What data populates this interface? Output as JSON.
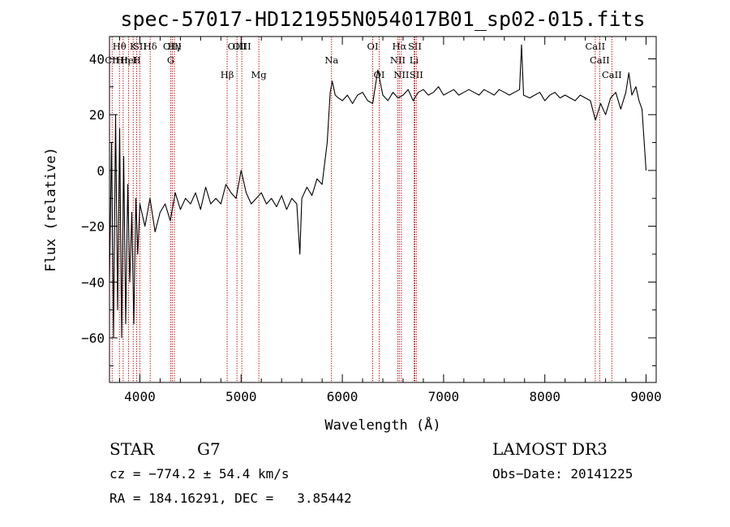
{
  "chart_data": {
    "type": "line",
    "title": "spec-57017-HD121955N054017B01_sp02-015.fits",
    "xlabel": "Wavelength (Å)",
    "ylabel": "Flux (relative)",
    "xlim": [
      3700,
      9100
    ],
    "ylim": [
      -76,
      48
    ],
    "xticks": [
      4000,
      5000,
      6000,
      7000,
      8000,
      9000
    ],
    "yticks": [
      -60,
      -40,
      -20,
      0,
      20,
      40
    ],
    "grid": false,
    "series": [
      {
        "x": [
          3700,
          3720,
          3740,
          3760,
          3780,
          3800,
          3820,
          3840,
          3860,
          3880,
          3900,
          3920,
          3940,
          3960,
          3980,
          4000,
          4050,
          4100,
          4150,
          4200,
          4250,
          4300,
          4350,
          4400,
          4450,
          4500,
          4550,
          4600,
          4650,
          4700,
          4750,
          4800,
          4850,
          4900,
          4950,
          5000,
          5050,
          5100,
          5150,
          5200,
          5250,
          5300,
          5350,
          5400,
          5450,
          5500,
          5550,
          5580,
          5600,
          5650,
          5700,
          5750,
          5800,
          5850,
          5880,
          5900,
          5930,
          5960,
          6000,
          6050,
          6100,
          6150,
          6200,
          6250,
          6300,
          6350,
          6400,
          6450,
          6500,
          6550,
          6600,
          6650,
          6700,
          6750,
          6800,
          6850,
          6900,
          6950,
          7000,
          7050,
          7100,
          7150,
          7200,
          7250,
          7300,
          7350,
          7400,
          7450,
          7500,
          7550,
          7600,
          7650,
          7700,
          7750,
          7770,
          7790,
          7850,
          7900,
          7950,
          8000,
          8050,
          8100,
          8150,
          8200,
          8250,
          8300,
          8350,
          8400,
          8450,
          8500,
          8550,
          8600,
          8650,
          8700,
          8750,
          8800,
          8830,
          8860,
          8900,
          8930,
          8960,
          9000,
          9000
        ],
        "y": [
          -40,
          10,
          -60,
          20,
          -50,
          15,
          -60,
          5,
          -55,
          -5,
          -40,
          -15,
          -55,
          -10,
          -30,
          -12,
          -20,
          -10,
          -22,
          -15,
          -12,
          -18,
          -8,
          -14,
          -10,
          -12,
          -8,
          -14,
          -6,
          -12,
          -10,
          -12,
          -5,
          -8,
          -10,
          0,
          -8,
          -12,
          -10,
          -8,
          -12,
          -10,
          -13,
          -9,
          -14,
          -10,
          -12,
          -30,
          -10,
          -6,
          -9,
          -3,
          -5,
          10,
          28,
          32,
          27,
          26,
          25,
          27,
          24,
          27,
          28,
          25,
          24,
          36,
          27,
          25,
          28,
          26,
          27,
          29,
          25,
          28,
          29,
          27,
          28,
          30,
          27,
          28,
          29,
          27,
          28,
          29,
          28,
          27,
          29,
          28,
          27,
          29,
          28,
          27,
          28,
          29,
          45,
          27,
          26,
          27,
          28,
          25,
          27,
          28,
          26,
          27,
          26,
          25,
          27,
          26,
          25,
          18,
          24,
          20,
          26,
          28,
          22,
          28,
          35,
          27,
          30,
          25,
          22,
          0,
          0
        ]
      }
    ],
    "lines": [
      {
        "label": "CII",
        "x": 3726,
        "row": 1
      },
      {
        "label": "Hθ",
        "x": 3798,
        "row": 0
      },
      {
        "label": "Hη",
        "x": 3835,
        "row": 1
      },
      {
        "label": "HeI",
        "x": 3889,
        "row": 1
      },
      {
        "label": "K",
        "x": 3934,
        "row": 0
      },
      {
        "label": "SII",
        "x": 4000,
        "row": 0
      },
      {
        "label": "H",
        "x": 3969,
        "row": 1
      },
      {
        "label": "Hδ",
        "x": 4102,
        "row": 0
      },
      {
        "label": "OIII",
        "x": 4320,
        "row": 0
      },
      {
        "label": "Hγ",
        "x": 4341,
        "row": 0
      },
      {
        "label": "G",
        "x": 4305,
        "row": 1
      },
      {
        "label": "Hβ",
        "x": 4862,
        "row": 2
      },
      {
        "label": "OIII",
        "x": 4959,
        "row": 0
      },
      {
        "label": "OIII",
        "x": 5007,
        "row": 0
      },
      {
        "label": "Mg",
        "x": 5175,
        "row": 2
      },
      {
        "label": "Na",
        "x": 5893,
        "row": 1
      },
      {
        "label": "OI",
        "x": 6300,
        "row": 0
      },
      {
        "label": "OI",
        "x": 6364,
        "row": 2
      },
      {
        "label": "Hα",
        "x": 6563,
        "row": 0
      },
      {
        "label": "SII",
        "x": 6716,
        "row": 0
      },
      {
        "label": "NII",
        "x": 6548,
        "row": 1
      },
      {
        "label": "Li",
        "x": 6708,
        "row": 1
      },
      {
        "label": "NII",
        "x": 6583,
        "row": 2
      },
      {
        "label": "SII",
        "x": 6731,
        "row": 2
      },
      {
        "label": "CaII",
        "x": 8498,
        "row": 0
      },
      {
        "label": "CaII",
        "x": 8542,
        "row": 1
      },
      {
        "label": "CaII",
        "x": 8662,
        "row": 2
      }
    ]
  },
  "info": {
    "type": "STAR",
    "subclass": "G7",
    "survey": "LAMOST DR3",
    "cz": "cz = −774.2 ± 54.4 km/s",
    "obs_date": "Obs−Date: 20141225",
    "coords": "RA = 184.16291, DEC =   3.85442"
  }
}
